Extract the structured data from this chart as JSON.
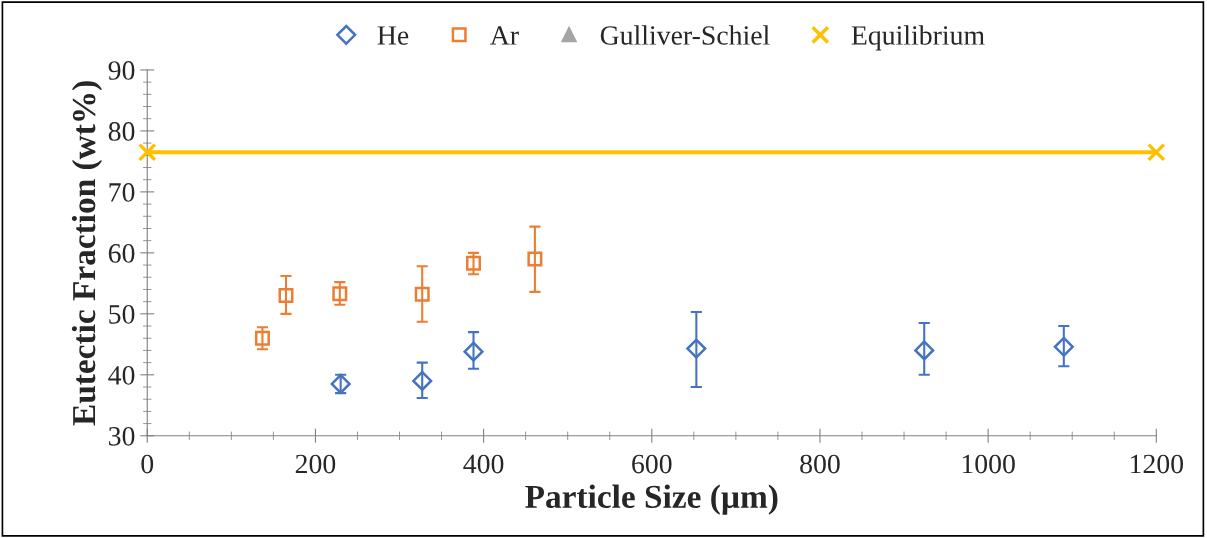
{
  "chart_data": {
    "type": "scatter",
    "xlabel": "Particle Size (µm)",
    "ylabel": "Eutectic Fraction (wt%)",
    "xlim": [
      0,
      1200
    ],
    "xticks": [
      0,
      200,
      400,
      600,
      800,
      1000,
      1200
    ],
    "ylim": [
      30,
      90
    ],
    "yticks": [
      30,
      40,
      50,
      60,
      70,
      80,
      90
    ],
    "grid": false,
    "legend": "top",
    "series": [
      {
        "name": "He",
        "color": "#4472c4",
        "marker": "diamond",
        "x": [
          230,
          327,
          388,
          653,
          924,
          1090
        ],
        "values": [
          38.5,
          39,
          43.8,
          44.3,
          44,
          44.6
        ],
        "errors": [
          [
            37,
            40
          ],
          [
            36.2,
            42
          ],
          [
            41,
            47
          ],
          [
            38,
            50.3
          ],
          [
            40,
            48.5
          ],
          [
            41.4,
            48
          ]
        ]
      },
      {
        "name": "Ar",
        "color": "#ed7d31",
        "marker": "square",
        "x": [
          137,
          165,
          229,
          327,
          388,
          461
        ],
        "values": [
          46,
          53,
          53.3,
          53.2,
          58.3,
          59
        ],
        "errors": [
          [
            44.2,
            47.8
          ],
          [
            50,
            56.2
          ],
          [
            51.5,
            55.2
          ],
          [
            48.7,
            57.8
          ],
          [
            56.5,
            60
          ],
          [
            53.6,
            64.3
          ]
        ]
      },
      {
        "name": "Gulliver-Schiel",
        "color": "#a5a5a5",
        "marker": "triangle"
      },
      {
        "name": "Equilibrium",
        "color": "#ffc000",
        "marker": "cross",
        "type": "line",
        "x": [
          0,
          1200
        ],
        "values": [
          76.5,
          76.5
        ]
      }
    ]
  }
}
